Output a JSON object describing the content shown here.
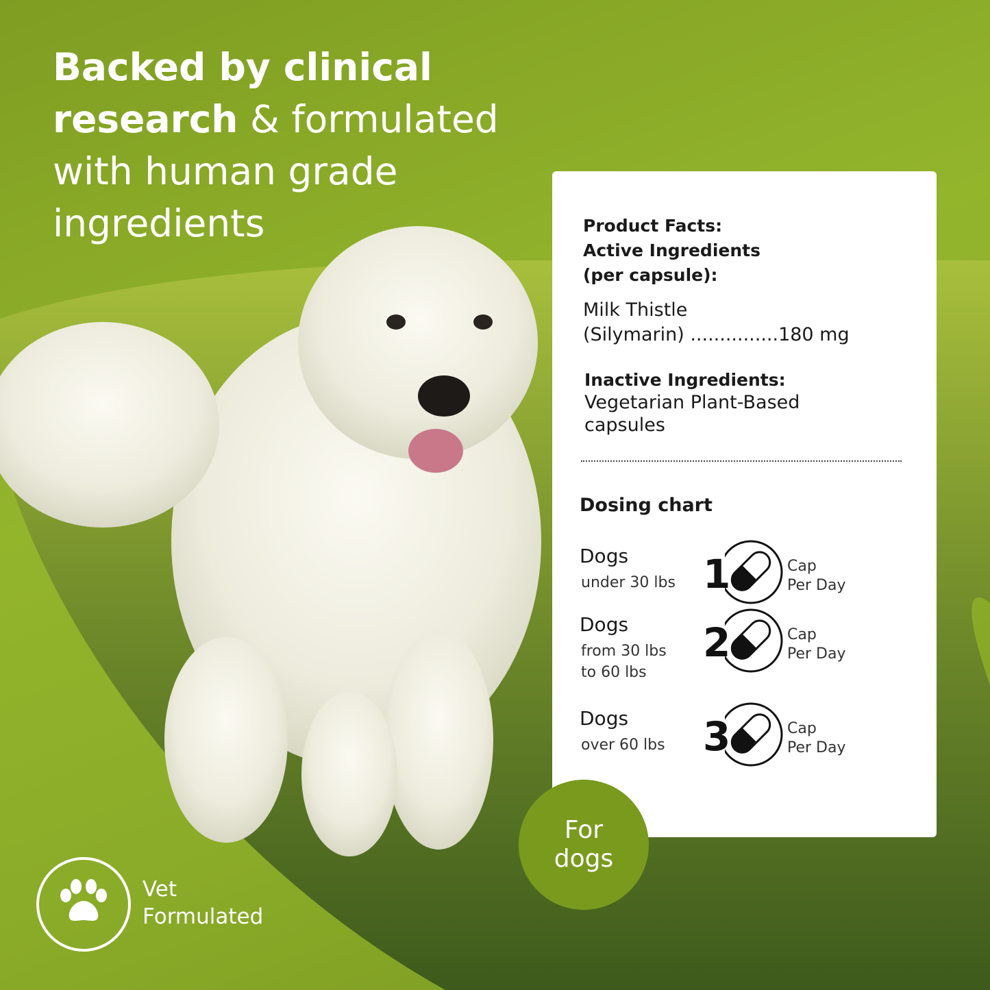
{
  "headline": {
    "bold1": "Backed by clinical",
    "bold2": "research",
    "rest1": " & formulated",
    "rest2": "with human grade",
    "rest3": "ingredients"
  },
  "facts": {
    "title1": "Product Facts:",
    "title2": "Active Ingredients",
    "title3": "(per capsule):",
    "ingredient_name": "Milk Thistle",
    "ingredient_detail": "(Silymarin) ...............180 mg",
    "inactive_label": "Inactive Ingredients:",
    "inactive_value1": "Vegetarian Plant-Based",
    "inactive_value2": "capsules"
  },
  "dosing": {
    "title": "Dosing chart",
    "rows": [
      {
        "who": "Dogs",
        "line1": "under 30 lbs",
        "line2": "",
        "count": "1",
        "cap": "Cap",
        "per": "Per Day"
      },
      {
        "who": "Dogs",
        "line1": "from 30 lbs",
        "line2": "to 60 lbs",
        "count": "2",
        "cap": "Cap",
        "per": "Per Day"
      },
      {
        "who": "Dogs",
        "line1": "over 60 lbs",
        "line2": "",
        "count": "3",
        "cap": "Cap",
        "per": "Per Day"
      }
    ]
  },
  "badge": {
    "line1": "For",
    "line2": "dogs"
  },
  "vet": {
    "line1": "Vet",
    "line2": "Formulated",
    "icon": "paw-icon"
  },
  "colors": {
    "brand_green": "#7a9a1e",
    "background": "#8aab28"
  }
}
